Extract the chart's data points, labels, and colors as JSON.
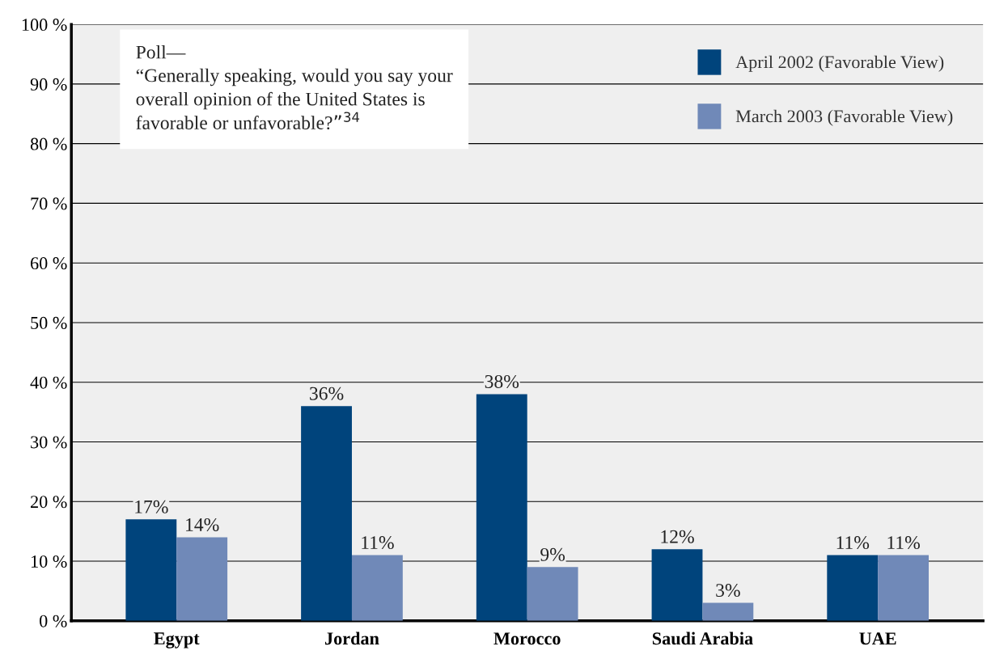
{
  "chart_data": {
    "type": "bar",
    "categories": [
      "Egypt",
      "Jordan",
      "Morocco",
      "Saudi Arabia",
      "UAE"
    ],
    "series": [
      {
        "name": "April 2002 (Favorable View)",
        "color": "#00447c",
        "values": [
          17,
          36,
          38,
          12,
          11
        ]
      },
      {
        "name": "March 2003 (Favorable View)",
        "color": "#7089b8",
        "values": [
          14,
          11,
          9,
          3,
          11
        ]
      }
    ],
    "ylim": [
      0,
      100
    ],
    "yticks": [
      {
        "value": 0,
        "label": "0 %"
      },
      {
        "value": 10,
        "label": "10 %"
      },
      {
        "value": 20,
        "label": "20 %"
      },
      {
        "value": 30,
        "label": "30 %"
      },
      {
        "value": 40,
        "label": "40 %"
      },
      {
        "value": 50,
        "label": "50 %"
      },
      {
        "value": 60,
        "label": "60 %"
      },
      {
        "value": 70,
        "label": "70 %"
      },
      {
        "value": 80,
        "label": "80 %"
      },
      {
        "value": 90,
        "label": "90 %"
      },
      {
        "value": 100,
        "label": "100 %"
      }
    ],
    "value_labels": [
      [
        "17%",
        "36%",
        "38%",
        "12%",
        "11%"
      ],
      [
        "14%",
        "11%",
        "9%",
        "3%",
        "11%"
      ]
    ],
    "annotations": [
      "Poll—\n“Generally speaking, would you say your\noverall opinion of the United States is\nfavorable or unfavorable?”$^{34}$"
    ],
    "grid": "y",
    "legend": "top right"
  }
}
